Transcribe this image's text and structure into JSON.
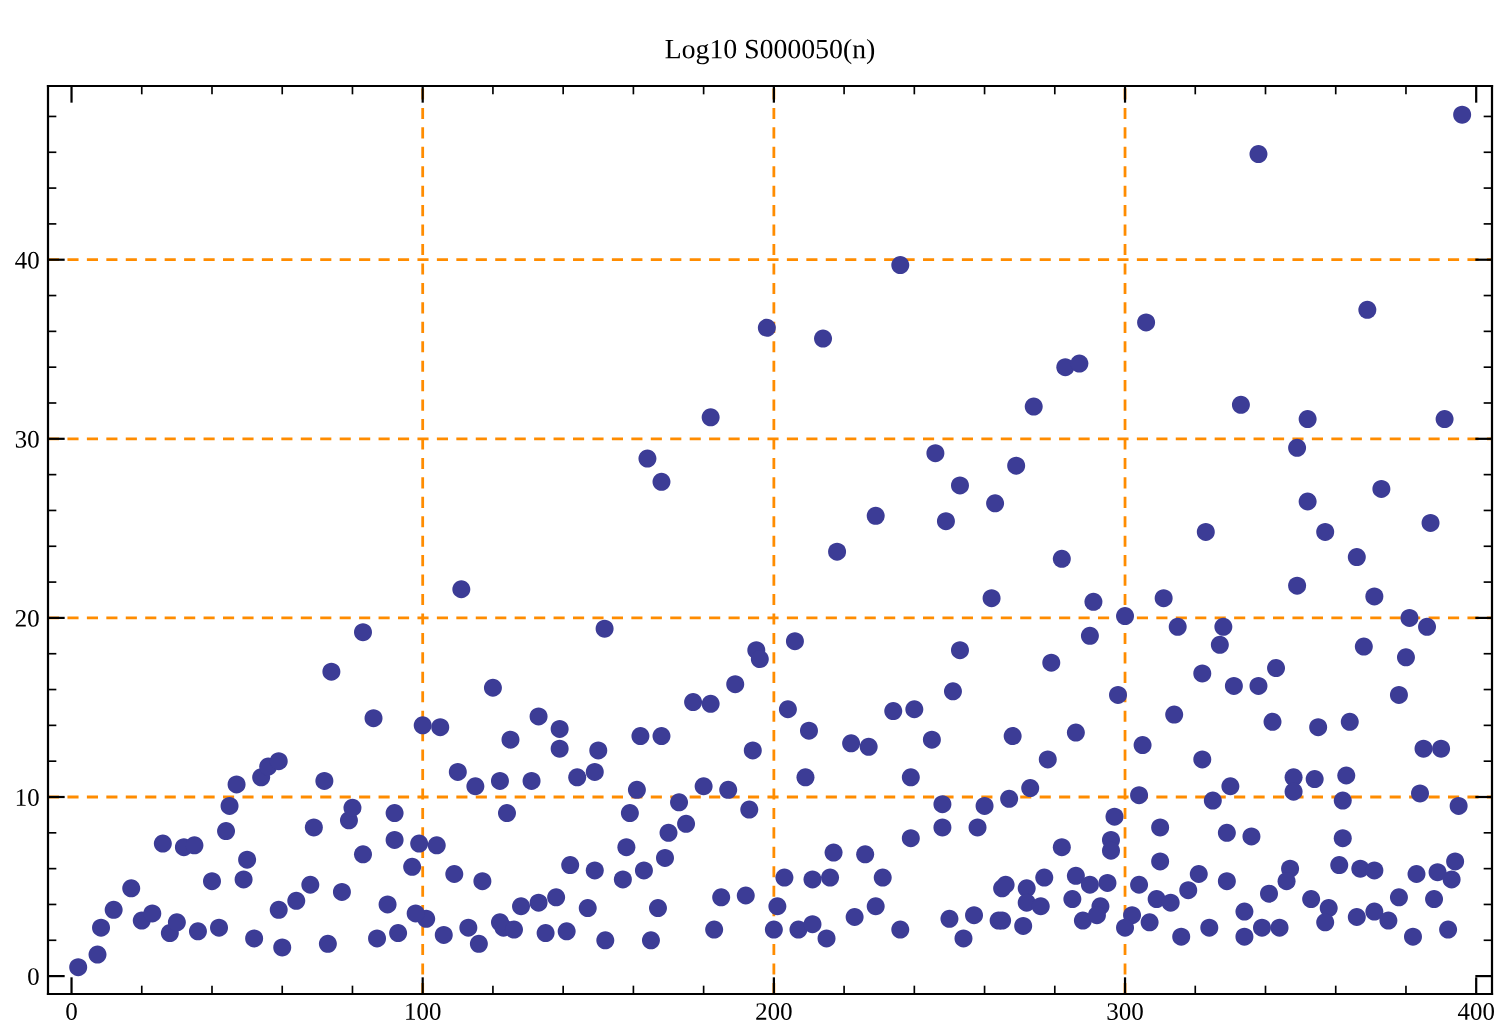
{
  "chart_data": {
    "type": "scatter",
    "title": "Log10 S000050(n)",
    "x": [
      1.9,
      7.4,
      12,
      17,
      26,
      32,
      35,
      28,
      44,
      45,
      47,
      54,
      56,
      59,
      49,
      50,
      40,
      36,
      42,
      52,
      60,
      68,
      69,
      72,
      74,
      73,
      77,
      79,
      80,
      83,
      83,
      86,
      87,
      92,
      92,
      93,
      97,
      99,
      100,
      101,
      104,
      105,
      106,
      109,
      110,
      111,
      115,
      116,
      117,
      120,
      122,
      124,
      125,
      123,
      8.4,
      20,
      30,
      23,
      59,
      64,
      90,
      98,
      113,
      151.8,
      133,
      139,
      139,
      131,
      144,
      149,
      150,
      162,
      168,
      177,
      182,
      189,
      194,
      195,
      196,
      206,
      204,
      210,
      209,
      218,
      222,
      227,
      234,
      240,
      245,
      251,
      253,
      262,
      239,
      260,
      248,
      258,
      161,
      159,
      180,
      187,
      193,
      173,
      170,
      175,
      158,
      169,
      142,
      149,
      163,
      157,
      203,
      211,
      216,
      217,
      226,
      231,
      239,
      248,
      185,
      192,
      122,
      128,
      133,
      138,
      147,
      167,
      126,
      135,
      141,
      152,
      165,
      183,
      200,
      201,
      207,
      211,
      215,
      223,
      229,
      236,
      250,
      254,
      257,
      264,
      265,
      198,
      214,
      236,
      182,
      164,
      168,
      246,
      253,
      263,
      229,
      249,
      396,
      338,
      306,
      369,
      283,
      287,
      274,
      333,
      352,
      391,
      349,
      269,
      352,
      373,
      323,
      357,
      387,
      366,
      282,
      291,
      311,
      349,
      371,
      300,
      315,
      328,
      381,
      386,
      290,
      327,
      368,
      380,
      279,
      322,
      331,
      338,
      343,
      378,
      298,
      314,
      342,
      355,
      364,
      268,
      286,
      305,
      278,
      322,
      385,
      390,
      348,
      354,
      363,
      348,
      330,
      273,
      267,
      304,
      325,
      362,
      384,
      395,
      297,
      296,
      296,
      310,
      329,
      336,
      362,
      282,
      347,
      361,
      367,
      371,
      383,
      389,
      394,
      310,
      321,
      277,
      286,
      295,
      304,
      266,
      272,
      290,
      318,
      329,
      346,
      393,
      341,
      353,
      378,
      388,
      272,
      285,
      309,
      276,
      293,
      313,
      358,
      265,
      271,
      288,
      292,
      302,
      300,
      307,
      334,
      357,
      366,
      371,
      375,
      324,
      339,
      344,
      316,
      334,
      382,
      392
    ],
    "values": [
      0.5,
      1.2,
      3.7,
      4.9,
      7.4,
      7.2,
      7.3,
      2.4,
      8.1,
      9.5,
      10.7,
      11.1,
      11.7,
      12.0,
      5.4,
      6.5,
      5.3,
      2.5,
      2.7,
      2.1,
      1.6,
      5.1,
      8.3,
      10.9,
      17.0,
      1.8,
      4.7,
      8.7,
      9.4,
      6.8,
      19.2,
      14.4,
      2.1,
      7.6,
      9.1,
      2.4,
      6.1,
      7.4,
      14.0,
      3.2,
      7.3,
      13.9,
      2.3,
      5.7,
      11.4,
      21.6,
      10.6,
      1.8,
      5.3,
      16.1,
      10.9,
      9.1,
      13.2,
      2.7,
      2.7,
      3.1,
      3.0,
      3.5,
      3.7,
      4.2,
      4.0,
      3.5,
      2.7,
      19.4,
      14.5,
      13.8,
      12.7,
      10.9,
      11.1,
      11.4,
      12.6,
      13.4,
      13.4,
      15.3,
      15.2,
      16.3,
      12.6,
      18.2,
      17.7,
      18.7,
      14.9,
      13.7,
      11.1,
      23.7,
      13.0,
      12.8,
      14.8,
      14.9,
      13.2,
      15.9,
      18.2,
      21.1,
      11.1,
      9.5,
      9.6,
      8.3,
      10.4,
      9.1,
      10.6,
      10.4,
      9.3,
      9.7,
      8.0,
      8.5,
      7.2,
      6.6,
      6.2,
      5.9,
      5.9,
      5.4,
      5.5,
      5.4,
      5.5,
      6.9,
      6.8,
      5.5,
      7.7,
      8.3,
      4.4,
      4.5,
      3.0,
      3.9,
      4.1,
      4.4,
      3.8,
      3.8,
      2.6,
      2.4,
      2.5,
      2.0,
      2.0,
      2.6,
      2.6,
      3.9,
      2.6,
      2.9,
      2.1,
      3.3,
      3.9,
      2.6,
      3.2,
      2.1,
      3.4,
      3.1,
      4.9,
      36.2,
      35.6,
      39.7,
      31.2,
      28.9,
      27.6,
      29.2,
      27.4,
      26.4,
      25.7,
      25.4,
      48.1,
      45.9,
      36.5,
      37.2,
      34.0,
      34.2,
      31.8,
      31.9,
      31.1,
      31.1,
      29.5,
      28.5,
      26.5,
      27.2,
      24.8,
      24.8,
      25.3,
      23.4,
      23.3,
      20.9,
      21.1,
      21.8,
      21.2,
      20.1,
      19.5,
      19.5,
      20.0,
      19.5,
      19.0,
      18.5,
      18.4,
      17.8,
      17.5,
      16.9,
      16.2,
      16.2,
      17.2,
      15.7,
      15.7,
      14.6,
      14.2,
      13.9,
      14.2,
      13.4,
      13.6,
      12.9,
      12.1,
      12.1,
      12.7,
      12.7,
      11.1,
      11.0,
      11.2,
      10.3,
      10.6,
      10.5,
      9.9,
      10.1,
      9.8,
      9.8,
      10.2,
      9.5,
      8.9,
      7.6,
      7.0,
      8.3,
      8.0,
      7.8,
      7.7,
      7.2,
      6.0,
      6.2,
      6.0,
      5.9,
      5.7,
      5.8,
      6.4,
      6.4,
      5.7,
      5.5,
      5.6,
      5.2,
      5.1,
      5.1,
      4.9,
      5.1,
      4.8,
      5.3,
      5.3,
      5.4,
      4.6,
      4.3,
      4.4,
      4.3,
      4.1,
      4.3,
      4.3,
      3.9,
      3.9,
      4.1,
      3.8,
      3.1,
      2.8,
      3.1,
      3.4,
      3.4,
      2.7,
      3.0,
      3.6,
      3.0,
      3.3,
      3.6,
      3.1,
      2.7,
      2.7,
      2.7,
      2.2,
      2.2,
      2.2,
      2.6
    ],
    "color": "#3c3c96",
    "marker": "circle",
    "xlim": [
      -6.7,
      404.5
    ],
    "ylim": [
      -1.0,
      49.7
    ],
    "xticks": [
      0,
      {
        "value": 20,
        "label": null
      },
      {
        "value": 40,
        "label": null
      },
      {
        "value": 60,
        "label": null
      },
      {
        "value": 80,
        "label": null
      },
      100,
      {
        "value": 120,
        "label": null
      },
      {
        "value": 140,
        "label": null
      },
      {
        "value": 160,
        "label": null
      },
      {
        "value": 180,
        "label": null
      },
      200,
      {
        "value": 220,
        "label": null
      },
      {
        "value": 240,
        "label": null
      },
      {
        "value": 260,
        "label": null
      },
      {
        "value": 280,
        "label": null
      },
      300,
      {
        "value": 320,
        "label": null
      },
      {
        "value": 340,
        "label": null
      },
      {
        "value": 360,
        "label": null
      },
      {
        "value": 380,
        "label": null
      },
      400
    ],
    "yticks": [
      0,
      {
        "value": 2,
        "label": null
      },
      {
        "value": 4,
        "label": null
      },
      {
        "value": 6,
        "label": null
      },
      {
        "value": 8,
        "label": null
      },
      10,
      {
        "value": 12,
        "label": null
      },
      {
        "value": 14,
        "label": null
      },
      {
        "value": 16,
        "label": null
      },
      {
        "value": 18,
        "label": null
      },
      20,
      {
        "value": 22,
        "label": null
      },
      {
        "value": 24,
        "label": null
      },
      {
        "value": 26,
        "label": null
      },
      {
        "value": 28,
        "label": null
      },
      30,
      {
        "value": 32,
        "label": null
      },
      {
        "value": 34,
        "label": null
      },
      {
        "value": 36,
        "label": null
      },
      {
        "value": 38,
        "label": null
      },
      40,
      {
        "value": 42,
        "label": null
      },
      {
        "value": 44,
        "label": null
      },
      {
        "value": 46,
        "label": null
      },
      {
        "value": 48,
        "label": null
      }
    ],
    "ref_lines": [
      {
        "axis": "x",
        "value": 100,
        "color": "#ff8c00",
        "line_style": "dashed"
      },
      {
        "axis": "x",
        "value": 200,
        "color": "#ff8c00",
        "line_style": "dashed"
      },
      {
        "axis": "x",
        "value": 300,
        "color": "#ff8c00",
        "line_style": "dashed"
      },
      {
        "axis": "y",
        "value": 10,
        "color": "#ff8c00",
        "line_style": "dashed"
      },
      {
        "axis": "y",
        "value": 20,
        "color": "#ff8c00",
        "line_style": "dashed"
      },
      {
        "axis": "y",
        "value": 30,
        "color": "#ff8c00",
        "line_style": "dashed"
      },
      {
        "axis": "y",
        "value": 40,
        "color": "#ff8c00",
        "line_style": "dashed"
      }
    ]
  }
}
